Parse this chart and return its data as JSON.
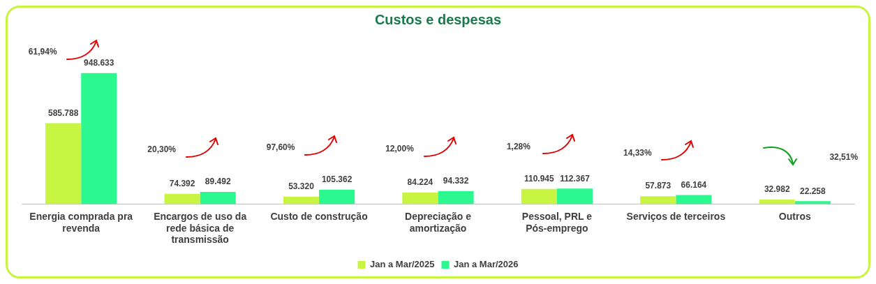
{
  "chart_data": {
    "type": "bar",
    "title": "Custos e despesas",
    "categories": [
      "Energia comprada pra revenda",
      "Encargos de uso da rede básica de transmissão",
      "Custo de construção",
      "Depreciação e amortização",
      "Pessoal, PRL e Pós-emprego",
      "Serviços de terceiros",
      "Outros"
    ],
    "series": [
      {
        "name": "Jan a Mar/2025",
        "color": "#c8f542",
        "values": [
          585788,
          74392,
          53320,
          84224,
          110945,
          57873,
          32982
        ],
        "value_labels": [
          "585.788",
          "74.392",
          "53.320",
          "84.224",
          "110.945",
          "57.873",
          "32.982"
        ]
      },
      {
        "name": "Jan a Mar/2026",
        "color": "#2bf98f",
        "values": [
          948633,
          89492,
          105362,
          94332,
          112367,
          66164,
          22258
        ],
        "value_labels": [
          "948.633",
          "89.492",
          "105.362",
          "94.332",
          "112.367",
          "66.164",
          "22.258"
        ]
      }
    ],
    "annotations": [
      "61,94%",
      "20,30%",
      "97,60%",
      "12,00%",
      "1,28%",
      "14,33%",
      "32,51%"
    ],
    "grid": false,
    "legend": "bottom"
  }
}
